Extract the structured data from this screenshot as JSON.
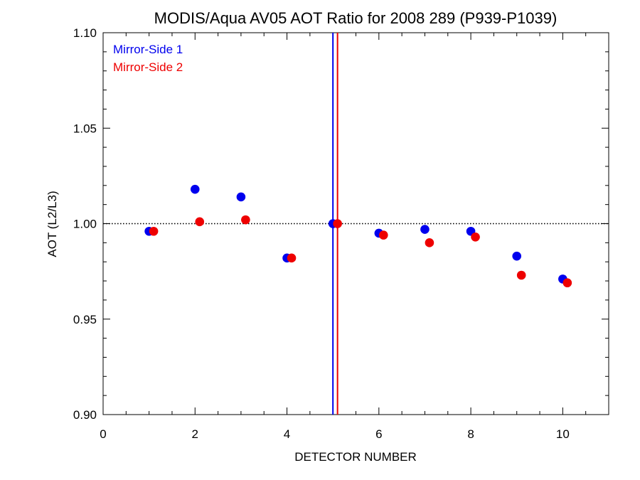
{
  "chart_data": {
    "type": "scatter",
    "title": "MODIS/Aqua AV05 AOT Ratio for 2008 289 (P939-P1039)",
    "xlabel": "DETECTOR NUMBER",
    "ylabel": "AOT (L2/L3)",
    "xlim": [
      0,
      11
    ],
    "ylim": [
      0.9,
      1.1
    ],
    "x_ticks": [
      0,
      2,
      4,
      6,
      8,
      10
    ],
    "x_tick_labels": [
      "0",
      "2",
      "4",
      "6",
      "8",
      "10"
    ],
    "y_ticks": [
      0.9,
      0.95,
      1.0,
      1.05,
      1.1
    ],
    "y_tick_labels": [
      "0.90",
      "0.95",
      "1.00",
      "1.05",
      "1.10"
    ],
    "reference_line_y": 1.0,
    "legend_position": "top-left",
    "series": [
      {
        "name": "Mirror-Side 1",
        "color": "#0000ee",
        "x": [
          1,
          2,
          3,
          4,
          5,
          6,
          7,
          8,
          9,
          10
        ],
        "y": [
          0.996,
          1.018,
          1.014,
          0.982,
          1.0,
          0.995,
          0.997,
          0.996,
          0.983,
          0.971
        ],
        "vline_x": 5.0
      },
      {
        "name": "Mirror-Side 2",
        "color": "#ee0000",
        "x": [
          1.1,
          2.1,
          3.1,
          4.1,
          5.1,
          6.1,
          7.1,
          8.1,
          9.1,
          10.1
        ],
        "y": [
          0.996,
          1.001,
          1.002,
          0.982,
          1.0,
          0.994,
          0.99,
          0.993,
          0.973,
          0.969
        ],
        "vline_x": 5.1
      }
    ]
  }
}
